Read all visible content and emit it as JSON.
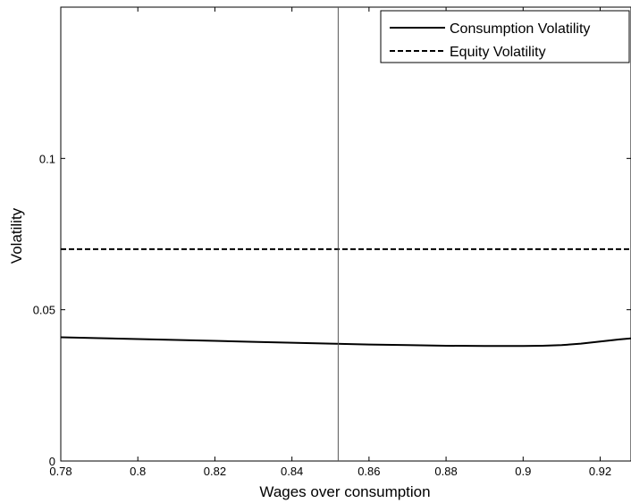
{
  "chart_data": {
    "type": "line",
    "xlabel": "Wages over consumption",
    "ylabel": "Volatility",
    "xlim": [
      0.78,
      0.928
    ],
    "ylim": [
      0,
      0.15
    ],
    "x_ticks": [
      0.78,
      0.8,
      0.82,
      0.84,
      0.86,
      0.88,
      0.9,
      0.92
    ],
    "x_tick_labels": [
      "0.78",
      "0.8",
      "0.82",
      "0.84",
      "0.86",
      "0.88",
      "0.9",
      "0.92"
    ],
    "y_ticks": [
      0,
      0.05,
      0.1
    ],
    "y_tick_labels": [
      "0",
      "0.05",
      "0.1"
    ],
    "grid": false,
    "legend_position": "top-right",
    "vertical_line_x": 0.852,
    "series": [
      {
        "name": "Consumption Volatility",
        "style": "solid",
        "color": "#000000",
        "x": [
          0.78,
          0.79,
          0.8,
          0.81,
          0.82,
          0.83,
          0.84,
          0.85,
          0.86,
          0.87,
          0.88,
          0.89,
          0.9,
          0.905,
          0.91,
          0.915,
          0.92,
          0.925,
          0.928
        ],
        "y": [
          0.0409,
          0.0406,
          0.0403,
          0.04,
          0.0397,
          0.0394,
          0.0391,
          0.0388,
          0.0385,
          0.0383,
          0.0381,
          0.038,
          0.038,
          0.0381,
          0.0383,
          0.0388,
          0.0395,
          0.0402,
          0.0405
        ]
      },
      {
        "name": "Equity Volatility",
        "style": "dashed",
        "color": "#000000",
        "x": [
          0.78,
          0.928
        ],
        "y": [
          0.07,
          0.07
        ]
      }
    ]
  }
}
